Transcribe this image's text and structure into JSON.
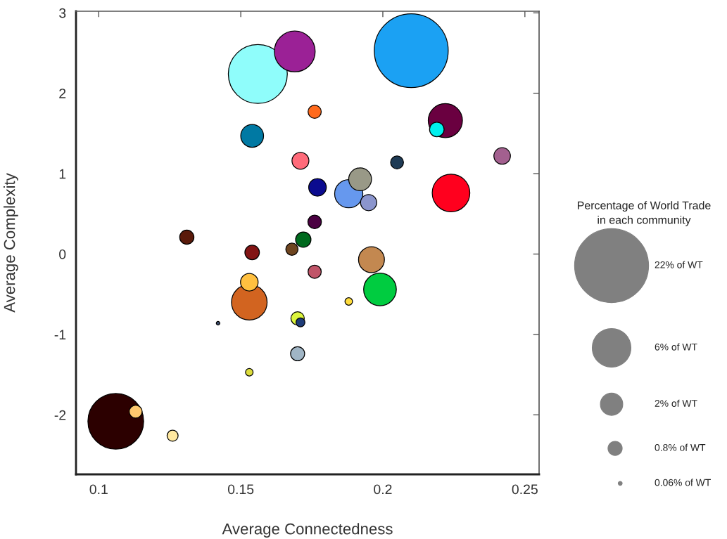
{
  "chart_data": {
    "type": "bubble",
    "xlabel": "Average Connectedness",
    "ylabel": "Average Complexity",
    "x": [
      0.21,
      0.156,
      0.106,
      0.169,
      0.224,
      0.153,
      0.222,
      0.199,
      0.188,
      0.196,
      0.154,
      0.192,
      0.177,
      0.153,
      0.171,
      0.242,
      0.195,
      0.172,
      0.219,
      0.154,
      0.131,
      0.17,
      0.176,
      0.17,
      0.176,
      0.176,
      0.205,
      0.113,
      0.168,
      0.126,
      0.171,
      0.188,
      0.153,
      0.142
    ],
    "values": [
      2.53,
      2.24,
      -2.08,
      2.52,
      0.76,
      -0.6,
      1.66,
      -0.44,
      0.75,
      -0.07,
      1.47,
      0.93,
      0.83,
      -0.35,
      1.16,
      1.22,
      0.64,
      0.18,
      1.55,
      0.02,
      0.21,
      -1.24,
      0.4,
      -0.8,
      1.77,
      -0.22,
      1.14,
      -1.96,
      0.06,
      -2.26,
      -0.85,
      -0.59,
      -1.47,
      -0.86
    ],
    "sizes": [
      22,
      14,
      12.5,
      6.7,
      5.7,
      5.1,
      4.7,
      4.3,
      3.2,
      2.7,
      2.1,
      2.1,
      1.25,
      1.25,
      1.15,
      1.1,
      1.05,
      0.95,
      0.85,
      0.85,
      0.82,
      0.8,
      0.74,
      0.72,
      0.7,
      0.7,
      0.67,
      0.67,
      0.6,
      0.49,
      0.32,
      0.23,
      0.23,
      0.05
    ],
    "colors": [
      "#1ba1f3",
      "#8ffdfb",
      "#2c0000",
      "#9b2196",
      "#ff001e",
      "#d26420",
      "#6a0040",
      "#00cc40",
      "#6698ee",
      "#c38850",
      "#0079a3",
      "#999987",
      "#0b0b8f",
      "#ffc040",
      "#ff6b7a",
      "#a3608f",
      "#8b95cd",
      "#006a1e",
      "#00f0ee",
      "#821414",
      "#5a1a0a",
      "#a0b5c5",
      "#4b0042",
      "#dcf53c",
      "#ff6a1c",
      "#c05468",
      "#1f3b55",
      "#ffc86e",
      "#6e4520",
      "#ffe8a0",
      "#1e3c78",
      "#ffdc3c",
      "#dcdc3c",
      "#3a4a6a"
    ],
    "xlim": [
      0.092,
      0.255
    ],
    "ylim": [
      -2.74,
      3.02
    ],
    "xticks": [
      0.1,
      0.15,
      0.2,
      0.25
    ],
    "yticks": [
      -2,
      -1,
      0,
      1,
      2,
      3
    ],
    "legend_title": "Percentage of World Trade\nin each community",
    "size_legend": [
      {
        "value": 22,
        "label": "22% of WT"
      },
      {
        "value": 6,
        "label": "6% of WT"
      },
      {
        "value": 2,
        "label": "2% of WT"
      },
      {
        "value": 0.8,
        "label": "0.8% of WT"
      },
      {
        "value": 0.06,
        "label": "0.06% of WT"
      }
    ]
  }
}
